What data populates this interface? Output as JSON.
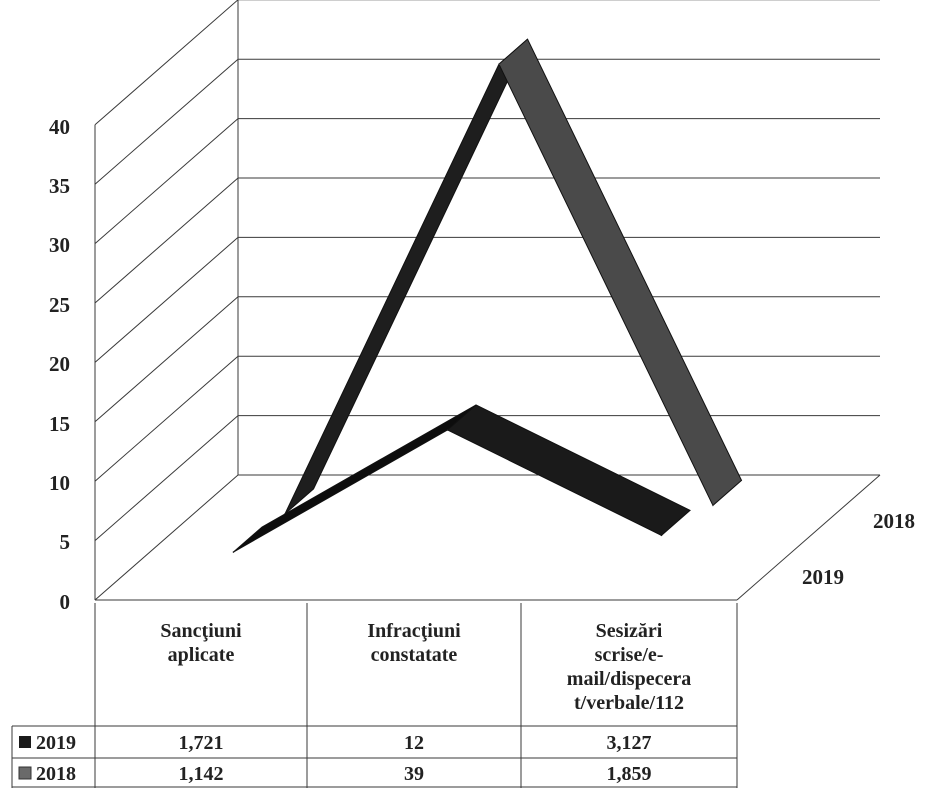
{
  "chart_data": {
    "type": "line",
    "view": "3d",
    "categories": [
      "Sancţiuni aplicate",
      "Infracţiuni constatate",
      "Sesizări scrise/e-mail/dispecerat/verbale/112"
    ],
    "category_lines": [
      [
        "Sancţiuni",
        "aplicate"
      ],
      [
        "Infracţiuni",
        "constatate"
      ],
      [
        "Sesizări",
        "scrise/e-",
        "mail/dispecera",
        "t/verbale/112"
      ]
    ],
    "series": [
      {
        "name": "2019",
        "values": [
          1.721,
          12,
          3.127
        ],
        "table_values": [
          "1,721",
          "12",
          "3,127"
        ],
        "color": "#1a1a1a",
        "legend_icon": "black-square"
      },
      {
        "name": "2018",
        "values": [
          1.142,
          39,
          1.859
        ],
        "table_values": [
          "1,142",
          "39",
          "1,859"
        ],
        "color": "#4a4a4a",
        "legend_icon": "gray-square"
      }
    ],
    "y_ticks": [
      "0",
      "5",
      "10",
      "15",
      "20",
      "25",
      "30",
      "35",
      "40"
    ],
    "ylim": [
      0,
      40
    ],
    "depth_labels": [
      "2019",
      "2018"
    ],
    "grid": true,
    "legend": "data-table",
    "title": "",
    "xlabel": "",
    "ylabel": ""
  }
}
